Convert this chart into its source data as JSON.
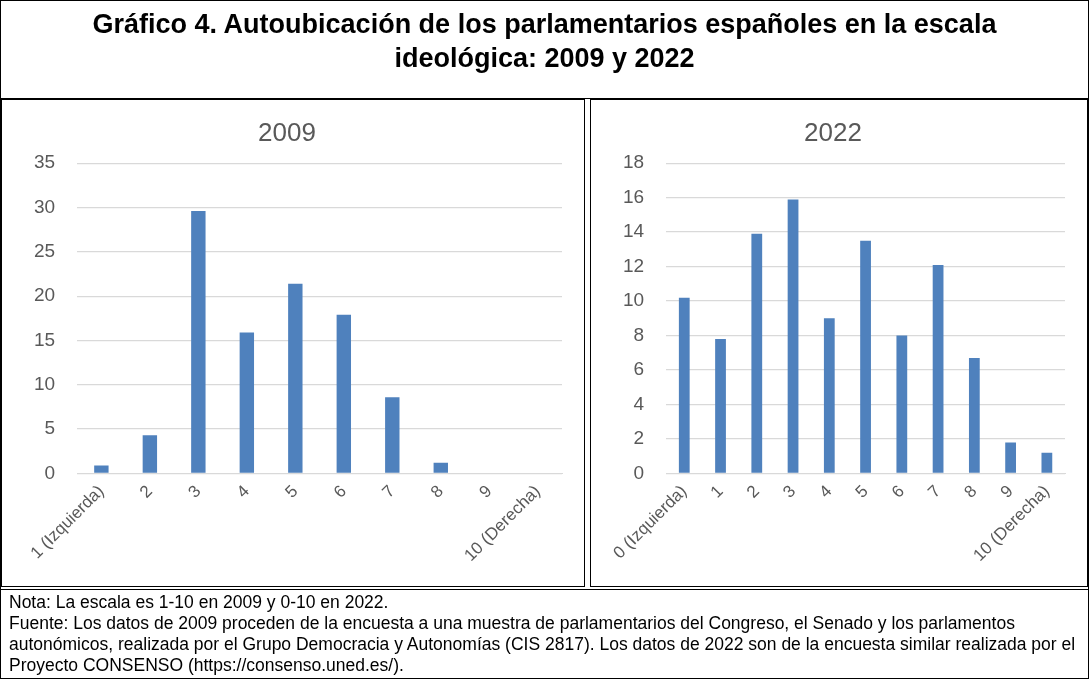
{
  "chart_data": [
    {
      "type": "other",
      "title": "Gráfico 4. Autoubicación de los parlamentarios españoles en la escala ideológica: 2009 y 2022"
    },
    {
      "type": "bar",
      "title": "2009",
      "categories": [
        "1 (Izquierda)",
        "2",
        "3",
        "4",
        "5",
        "6",
        "7",
        "8",
        "9",
        "10 (Derecha)"
      ],
      "values": [
        0.9,
        4.3,
        29.6,
        15.9,
        21.4,
        17.9,
        8.6,
        1.2,
        0,
        0
      ],
      "color": "#4f81bd",
      "ylim": [
        0,
        35
      ],
      "yticks": [
        0,
        5,
        10,
        15,
        20,
        25,
        30,
        35
      ],
      "grid": "y"
    },
    {
      "type": "bar",
      "title": "2022",
      "categories": [
        "0 (Izquierda)",
        "1",
        "2",
        "3",
        "4",
        "5",
        "6",
        "7",
        "8",
        "9",
        "10 (Derecha)"
      ],
      "values": [
        10.2,
        7.8,
        13.9,
        15.9,
        9.0,
        13.5,
        8.0,
        12.1,
        6.7,
        1.8,
        1.2
      ],
      "color": "#4f81bd",
      "ylim": [
        0,
        18
      ],
      "yticks": [
        0,
        2,
        4,
        6,
        8,
        10,
        12,
        14,
        16,
        18
      ],
      "grid": "y"
    },
    {
      "type": "other",
      "annotations": [
        "Nota: La escala es 1-10 en 2009 y 0-10 en 2022.",
        "Fuente: Los datos de 2009 proceden de la encuesta a una muestra de parlamentarios del Congreso, el Senado y los parlamentos autonómicos, realizada por el Grupo Democracia y Autonomías (CIS 2817). Los datos de 2022 son de la encuesta similar realizada por el Proyecto CONSENSO (https://consenso.uned.es/)."
      ]
    }
  ]
}
